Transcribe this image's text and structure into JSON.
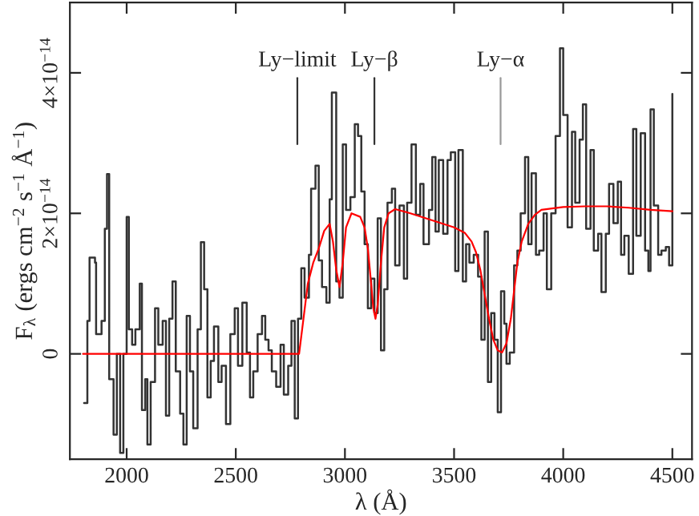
{
  "chart_data": {
    "type": "step",
    "xlabel": "λ (Å)",
    "ylabel": "F$_{λ}$ (ergs cm$^{−2}$ s$^{−1}$ Å$^{−1}$)",
    "xlim": [
      1740,
      4590
    ],
    "xticks": [
      2000,
      2500,
      3000,
      3500,
      4000,
      4500
    ],
    "ylim": [
      -1.5e-14,
      5e-14
    ],
    "yticks": [
      {
        "value": 0,
        "label": "0"
      },
      {
        "value": 2e-14,
        "label": "2×10$^{−14}$"
      },
      {
        "value": 4e-14,
        "label": "4×10$^{−14}$"
      }
    ],
    "grid": false,
    "legend": false,
    "series": [
      {
        "color": "#333333",
        "x": [
          1805,
          1820,
          1830,
          1855,
          1860,
          1885,
          1900,
          1910,
          1920,
          1940,
          1955,
          1970,
          1985,
          2000,
          2010,
          2025,
          2040,
          2060,
          2070,
          2085,
          2095,
          2110,
          2130,
          2145,
          2165,
          2180,
          2195,
          2210,
          2225,
          2245,
          2260,
          2275,
          2290,
          2305,
          2325,
          2340,
          2355,
          2370,
          2385,
          2400,
          2420,
          2435,
          2455,
          2475,
          2495,
          2510,
          2530,
          2550,
          2565,
          2580,
          2600,
          2620,
          2635,
          2650,
          2665,
          2685,
          2705,
          2720,
          2740,
          2755,
          2770,
          2785,
          2800,
          2815,
          2835,
          2845,
          2865,
          2880,
          2895,
          2915,
          2930,
          2940,
          2960,
          2975,
          2990,
          3005,
          3025,
          3045,
          3060,
          3075,
          3090,
          3105,
          3120,
          3135,
          3150,
          3165,
          3180,
          3195,
          3215,
          3230,
          3250,
          3270,
          3285,
          3305,
          3325,
          3345,
          3360,
          3385,
          3400,
          3415,
          3430,
          3450,
          3470,
          3485,
          3505,
          3520,
          3540,
          3555,
          3570,
          3590,
          3610,
          3625,
          3640,
          3655,
          3670,
          3685,
          3700,
          3715,
          3730,
          3740,
          3755,
          3775,
          3790,
          3805,
          3825,
          3840,
          3855,
          3875,
          3890,
          3910,
          3925,
          3945,
          3965,
          3985,
          4000,
          4020,
          4040,
          4055,
          4075,
          4090,
          4105,
          4125,
          4140,
          4160,
          4175,
          4195,
          4210,
          4230,
          4250,
          4265,
          4280,
          4300,
          4320,
          4335,
          4355,
          4375,
          4390,
          4400,
          4415,
          4435,
          4450,
          4470,
          4485,
          4500
        ],
        "values": [
          -7e-15,
          4.7e-15,
          1.37e-14,
          1.3e-14,
          2.8e-15,
          4.7e-15,
          1.78e-14,
          2.56e-14,
          -3.6e-15,
          -1.15e-14,
          0,
          -1.41e-14,
          0,
          1.95e-14,
          3.5e-15,
          1.3e-15,
          3.5e-15,
          1e-14,
          -8e-15,
          -3.6e-15,
          -1.29e-14,
          -4e-15,
          6.5e-15,
          1.3e-15,
          4.7e-15,
          -8.8e-15,
          5e-15,
          1.03e-14,
          -2.5e-15,
          -8.5e-15,
          -1.29e-14,
          5.4e-15,
          -2.5e-15,
          -1.06e-14,
          3.5e-15,
          1.59e-14,
          9.2e-15,
          -6.2e-15,
          -1e-15,
          3.9e-15,
          -4e-15,
          -1.7e-15,
          -1e-14,
          2.8e-15,
          6.5e-15,
          -1.7e-15,
          7.3e-15,
          2e-16,
          -6.2e-15,
          -2.5e-15,
          2.8e-15,
          5.4e-15,
          2e-15,
          5e-16,
          -2.5e-15,
          -4.7e-15,
          1.3e-15,
          -5.8e-15,
          -1.7e-15,
          4.7e-15,
          -9.2e-15,
          5e-15,
          1.22e-14,
          8e-15,
          1.41e-14,
          2.35e-14,
          2.68e-14,
          1.33e-14,
          9.5e-15,
          7.3e-15,
          2.2e-14,
          3.72e-14,
          1.03e-14,
          8e-15,
          2.98e-14,
          2.05e-14,
          2.23e-14,
          3.27e-14,
          3.1e-14,
          2.31e-14,
          1.56e-14,
          6.5e-15,
          1.07e-14,
          5.8e-15,
          1.93e-14,
          5e-16,
          9.2e-15,
          2.15e-14,
          2.35e-14,
          1.26e-14,
          2.11e-14,
          1.07e-14,
          2.15e-14,
          2.98e-14,
          1.98e-14,
          2.42e-14,
          1.56e-14,
          2.05e-14,
          2.8e-14,
          1.74e-14,
          2.76e-14,
          1.71e-14,
          2.76e-14,
          2.87e-14,
          1.18e-14,
          2.9e-14,
          1.03e-14,
          1.56e-14,
          1.3e-14,
          1.41e-14,
          1.1e-14,
          2e-15,
          1.74e-14,
          -4e-15,
          5.8e-15,
          2e-15,
          -8.3e-15,
          8.9e-15,
          4.3e-15,
          -1.4e-15,
          2e-16,
          1.26e-14,
          1.47e-14,
          2e-14,
          2.8e-14,
          1.56e-14,
          2.57e-14,
          1.41e-14,
          1.47e-14,
          2e-14,
          9.2e-15,
          2e-14,
          3.1e-14,
          4.35e-14,
          3.4e-14,
          1.8e-14,
          3.16e-14,
          2.15e-14,
          3.05e-14,
          3.55e-14,
          1.78e-14,
          2.9e-14,
          1.47e-14,
          1.71e-14,
          8.8e-15,
          1.71e-14,
          2.42e-14,
          1.86e-14,
          2.45e-14,
          1.41e-14,
          1.68e-14,
          1.14e-14,
          3.2e-14,
          1.68e-14,
          3.14e-14,
          1.47e-14,
          1.18e-14,
          3.48e-14,
          2.11e-14,
          1.41e-14,
          1.47e-14,
          1.52e-14,
          1.26e-14,
          3.7e-14
        ]
      },
      {
        "type": "line",
        "color": "#ff0000",
        "x": [
          1800,
          2790,
          2810,
          2830,
          2855,
          2880,
          2905,
          2930,
          2945,
          2960,
          2975,
          2990,
          3005,
          3030,
          3070,
          3090,
          3105,
          3120,
          3130,
          3140,
          3150,
          3165,
          3180,
          3200,
          3230,
          3300,
          3400,
          3500,
          3550,
          3580,
          3600,
          3620,
          3640,
          3660,
          3680,
          3700,
          3720,
          3740,
          3760,
          3775,
          3790,
          3810,
          3840,
          3870,
          3900,
          4000,
          4100,
          4200,
          4300,
          4400,
          4500
        ],
        "values": [
          0,
          0,
          5e-15,
          1e-14,
          1.3e-14,
          1.5e-14,
          1.75e-14,
          1.85e-14,
          1.6e-14,
          1.2e-14,
          9.5e-15,
          1.3e-14,
          1.8e-14,
          2e-14,
          1.95e-14,
          1.8e-14,
          1.5e-14,
          1e-14,
          6.5e-15,
          5e-15,
          7e-15,
          1.3e-14,
          1.8e-14,
          2e-14,
          2.06e-14,
          2e-14,
          1.9e-14,
          1.8e-14,
          1.72e-14,
          1.6e-14,
          1.45e-14,
          1.2e-14,
          8.5e-15,
          5e-15,
          2e-15,
          5e-16,
          2e-16,
          1.5e-15,
          5e-15,
          9e-15,
          1.3e-14,
          1.6e-14,
          1.85e-14,
          1.98e-14,
          2.05e-14,
          2.09e-14,
          2.1e-14,
          2.1e-14,
          2.08e-14,
          2.05e-14,
          2.03e-14
        ]
      }
    ],
    "ref_lines": [
      {
        "axis": "x",
        "value": 2782,
        "label": "Ly−limit",
        "color": "#333333"
      },
      {
        "axis": "x",
        "value": 3135,
        "label": "Ly−β",
        "color": "#333333"
      },
      {
        "axis": "x",
        "value": 3713,
        "label": "Ly−α",
        "color": "#999999"
      }
    ]
  }
}
